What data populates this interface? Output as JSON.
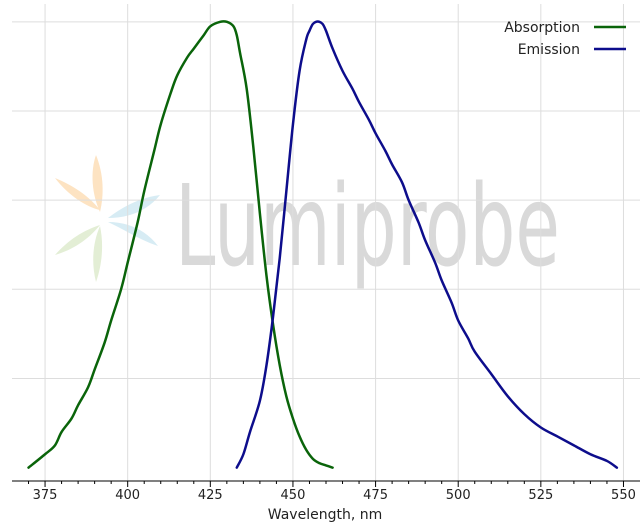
{
  "chart_data": {
    "type": "line",
    "title": "",
    "xlabel": "Wavelength, nm",
    "ylabel": "",
    "xlim": [
      365,
      555
    ],
    "ylim": [
      -0.03,
      1.04
    ],
    "xticks": [
      375,
      400,
      425,
      450,
      475,
      500,
      525,
      550
    ],
    "xtick_labels": [
      "375",
      "400",
      "425",
      "450",
      "475",
      "500",
      "525",
      "550"
    ],
    "grid": true,
    "legend_position": "top-right",
    "watermark": "Lumiprobe",
    "series": [
      {
        "name": "Absorption",
        "color": "#0a640a",
        "x": [
          370,
          375,
          378,
          380,
          383,
          385,
          388,
          390,
          393,
          395,
          398,
          400,
          403,
          405,
          408,
          410,
          413,
          415,
          418,
          420,
          423,
          425,
          428,
          430,
          432,
          433,
          434,
          436,
          438,
          440,
          442,
          444,
          446,
          448,
          450,
          452,
          454,
          456,
          458,
          460,
          462
        ],
        "y": [
          0.0,
          0.03,
          0.05,
          0.08,
          0.11,
          0.14,
          0.18,
          0.22,
          0.28,
          0.33,
          0.4,
          0.46,
          0.55,
          0.62,
          0.71,
          0.77,
          0.84,
          0.88,
          0.92,
          0.94,
          0.97,
          0.99,
          1.0,
          1.0,
          0.99,
          0.97,
          0.93,
          0.85,
          0.72,
          0.57,
          0.43,
          0.32,
          0.23,
          0.16,
          0.11,
          0.07,
          0.04,
          0.02,
          0.01,
          0.005,
          0.0
        ]
      },
      {
        "name": "Emission",
        "color": "#0d0d8c",
        "x": [
          433,
          435,
          437,
          440,
          442,
          444,
          446,
          448,
          450,
          452,
          454,
          455,
          456,
          457,
          458,
          459,
          460,
          462,
          465,
          468,
          470,
          473,
          475,
          478,
          480,
          483,
          485,
          488,
          490,
          493,
          495,
          498,
          500,
          503,
          505,
          510,
          515,
          520,
          525,
          530,
          535,
          540,
          545,
          548
        ],
        "y": [
          0.0,
          0.03,
          0.08,
          0.15,
          0.23,
          0.34,
          0.47,
          0.62,
          0.77,
          0.89,
          0.96,
          0.98,
          0.995,
          1.0,
          1.0,
          0.995,
          0.98,
          0.94,
          0.89,
          0.85,
          0.82,
          0.78,
          0.75,
          0.71,
          0.68,
          0.64,
          0.6,
          0.55,
          0.51,
          0.46,
          0.42,
          0.37,
          0.33,
          0.29,
          0.26,
          0.21,
          0.16,
          0.12,
          0.09,
          0.07,
          0.05,
          0.03,
          0.015,
          0.0
        ]
      }
    ]
  }
}
